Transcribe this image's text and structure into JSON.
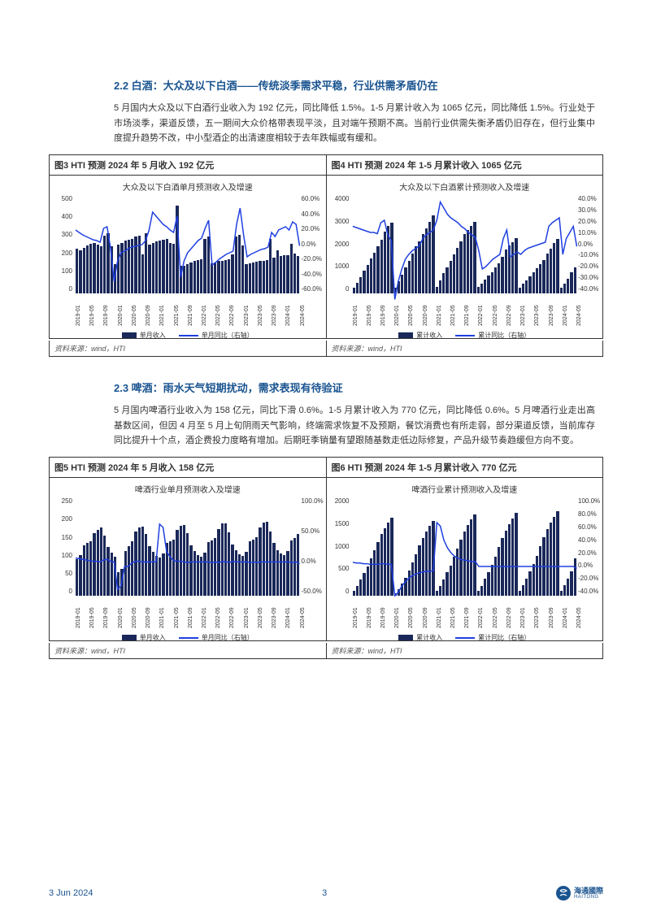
{
  "section_2_2": {
    "heading": "2.2  白酒：大众及以下白酒——传统淡季需求平稳，行业供需矛盾仍在",
    "body": "5 月国内大众及以下白酒行业收入为 192 亿元，同比降低 1.5%。1-5 月累计收入为 1065 亿元，同比降低 1.5%。行业处于市场淡季，渠道反馈，五一期间大众价格带表现平淡，且对端午预期不高。当前行业供需失衡矛盾仍旧存在，但行业集中度提升趋势不改，中小型酒企的出清速度相较于去年跌幅或有缓和。"
  },
  "fig3": {
    "caption": "图3   HTI 预测 2024 年 5 月收入 192 亿元",
    "title": "大众及以下白酒单月预测收入及增速",
    "type": "bar+line",
    "bar_color": "#1a2859",
    "line_color": "#2040e0",
    "background_color": "#ffffff",
    "y_left": {
      "min": 0,
      "max": 500,
      "step": 100,
      "label": ""
    },
    "y_right": {
      "min": -60,
      "max": 60,
      "step": 20,
      "suffix": "%"
    },
    "x_labels": [
      "2019-01",
      "2019-05",
      "2019-09",
      "2020-01",
      "2020-05",
      "2020-09",
      "2021-01",
      "2021-05",
      "2021-09",
      "2022-01",
      "2022-05",
      "2022-09",
      "2023-01",
      "2023-05",
      "2023-09",
      "2024-01",
      "2024-05"
    ],
    "bars": [
      230,
      220,
      235,
      245,
      255,
      260,
      250,
      240,
      295,
      310,
      240,
      150,
      250,
      260,
      270,
      275,
      280,
      290,
      295,
      200,
      310,
      250,
      260,
      265,
      270,
      275,
      280,
      260,
      255,
      450,
      140,
      140,
      150,
      160,
      165,
      170,
      175,
      280,
      290,
      155,
      160,
      165,
      168,
      172,
      175,
      200,
      290,
      300,
      245,
      150,
      155,
      160,
      162,
      165,
      168,
      170,
      280,
      185,
      220,
      190,
      195,
      198,
      255,
      205,
      192
    ],
    "line": [
      18,
      15,
      12,
      10,
      8,
      6,
      5,
      3,
      20,
      22,
      -5,
      -45,
      -20,
      -10,
      -8,
      -5,
      -3,
      -2,
      -1,
      0,
      5,
      18,
      40,
      35,
      30,
      25,
      22,
      18,
      15,
      35,
      -40,
      -20,
      -10,
      -5,
      0,
      5,
      8,
      20,
      30,
      -25,
      -22,
      -18,
      -15,
      -12,
      -10,
      -8,
      25,
      45,
      12,
      -15,
      -12,
      -10,
      -8,
      -6,
      -5,
      -3,
      15,
      10,
      18,
      20,
      22,
      18,
      28,
      25,
      -1.5
    ],
    "legend_bar": "单月收入",
    "legend_line": "单月同比（右轴）",
    "source": "资料来源：wind，HTI"
  },
  "fig4": {
    "caption": "图4   HTI 预测 2024 年 1-5 月累计收入 1065 亿元",
    "title": "大众及以下白酒累计预测收入及增速",
    "type": "bar+line",
    "bar_color": "#1a2859",
    "line_color": "#2040e0",
    "y_left": {
      "min": 0,
      "max": 4000,
      "step": 1000
    },
    "y_right": {
      "min": -40,
      "max": 40,
      "step": 10,
      "suffix": "%"
    },
    "x_labels": [
      "2019-01",
      "2019-05",
      "2019-09",
      "2020-01",
      "2020-05",
      "2020-09",
      "2021-01",
      "2021-05",
      "2021-09",
      "2022-01",
      "2022-05",
      "2022-09",
      "2023-01",
      "2023-05",
      "2023-09",
      "2024-01",
      "2024-05"
    ],
    "bars": [
      230,
      450,
      680,
      920,
      1170,
      1430,
      1680,
      1920,
      2210,
      2520,
      2760,
      2910,
      250,
      510,
      780,
      1055,
      1335,
      1625,
      1920,
      2120,
      2430,
      2680,
      2940,
      3205,
      270,
      545,
      825,
      1085,
      1340,
      1610,
      1870,
      2150,
      2440,
      2595,
      2755,
      2920,
      260,
      410,
      560,
      720,
      885,
      1055,
      1230,
      1510,
      1800,
      1955,
      2115,
      2280,
      240,
      390,
      545,
      705,
      867,
      1032,
      1200,
      1370,
      1650,
      1835,
      2055,
      2245,
      220,
      415,
      610,
      865,
      1065
    ],
    "line": [
      15,
      14,
      13,
      12,
      11,
      10,
      10,
      9,
      18,
      20,
      8,
      3,
      -45,
      -30,
      -20,
      -12,
      -8,
      -5,
      -3,
      -1,
      5,
      8,
      10,
      12,
      20,
      35,
      30,
      25,
      22,
      20,
      18,
      15,
      13,
      10,
      8,
      6,
      -5,
      -20,
      -18,
      -15,
      -12,
      -10,
      -8,
      5,
      12,
      -10,
      -8,
      -6,
      -8,
      -5,
      -3,
      -2,
      -1,
      0,
      1,
      2,
      15,
      18,
      20,
      22,
      -8,
      5,
      10,
      15,
      -1.5
    ],
    "legend_bar": "累计收入",
    "legend_line": "累计同比（右轴）",
    "source": "资料来源：wind，HTI"
  },
  "section_2_3": {
    "heading": "2.3  啤酒：雨水天气短期扰动，需求表现有待验证",
    "body": "5 月国内啤酒行业收入为 158 亿元，同比下滑 0.6%。1-5 月累计收入为 770 亿元，同比降低 0.6%。5 月啤酒行业走出高基数区间，但因 4 月至 5 月上旬阴雨天气影响，终端需求恢复不及预期，餐饮消费也有所走弱，部分渠道反馈，当前库存同比提升十个点，酒企费投力度略有增加。后期旺季销量有望跟随基数走低边际修复，产品升级节奏趋缓但方向不变。"
  },
  "fig5": {
    "caption": "图5   HTI 预测 2024 年 5 月收入 158 亿元",
    "title": "啤酒行业单月预测收入及增速",
    "type": "bar+line",
    "bar_color": "#1a2859",
    "line_color": "#2040e0",
    "y_left": {
      "min": 0,
      "max": 250,
      "step": 50
    },
    "y_right": {
      "min": -50,
      "max": 100,
      "step": 50,
      "suffix": "%"
    },
    "x_labels": [
      "2019-01",
      "2019-05",
      "2019-09",
      "2020-01",
      "2020-05",
      "2020-09",
      "2021-01",
      "2021-05",
      "2021-09",
      "2022-01",
      "2022-05",
      "2022-09",
      "2023-01",
      "2023-05",
      "2023-09",
      "2024-01",
      "2024-05"
    ],
    "bars": [
      95,
      105,
      130,
      135,
      140,
      160,
      170,
      175,
      155,
      125,
      110,
      100,
      60,
      70,
      115,
      128,
      140,
      165,
      175,
      178,
      158,
      128,
      112,
      102,
      98,
      108,
      135,
      140,
      145,
      170,
      180,
      182,
      160,
      130,
      114,
      104,
      100,
      110,
      138,
      142,
      148,
      172,
      185,
      186,
      162,
      132,
      116,
      106,
      102,
      112,
      140,
      145,
      150,
      175,
      188,
      190,
      165,
      135,
      118,
      108,
      104,
      114,
      142,
      148,
      158
    ],
    "line": [
      8,
      7,
      6,
      5,
      4,
      3,
      3,
      2,
      5,
      6,
      3,
      2,
      -40,
      -35,
      -5,
      -5,
      0,
      3,
      3,
      2,
      2,
      2,
      2,
      2,
      60,
      55,
      18,
      10,
      4,
      3,
      3,
      2,
      1,
      2,
      2,
      2,
      2,
      2,
      2,
      1,
      2,
      1,
      3,
      2,
      1,
      3,
      2,
      2,
      2,
      2,
      1,
      2,
      1,
      2,
      2,
      2,
      2,
      2,
      2,
      2,
      2,
      2,
      1,
      2,
      -0.6
    ],
    "legend_bar": "单月收入",
    "legend_line": "单月同比（右轴）",
    "source": "资料来源：wind，HTI"
  },
  "fig6": {
    "caption": "图6   HTI 预测 2024 年 1-5 月累计收入 770 亿元",
    "title": "啤酒行业累计预测收入及增速",
    "type": "bar+line",
    "bar_color": "#1a2859",
    "line_color": "#2040e0",
    "y_left": {
      "min": 0,
      "max": 2000,
      "step": 500
    },
    "y_right": {
      "min": -40,
      "max": 100,
      "step": 20,
      "suffix": "%"
    },
    "x_labels": [
      "2019-01",
      "2019-05",
      "2019-09",
      "2020-01",
      "2020-05",
      "2020-09",
      "2021-01",
      "2021-05",
      "2021-09",
      "2022-01",
      "2022-05",
      "2022-09",
      "2023-01",
      "2023-05",
      "2023-09",
      "2024-01",
      "2024-05"
    ],
    "bars": [
      95,
      200,
      330,
      465,
      605,
      765,
      935,
      1110,
      1265,
      1390,
      1500,
      1600,
      60,
      130,
      245,
      373,
      513,
      678,
      853,
      1031,
      1189,
      1317,
      1429,
      1531,
      98,
      206,
      341,
      481,
      626,
      796,
      976,
      1158,
      1318,
      1448,
      1562,
      1666,
      100,
      210,
      348,
      490,
      638,
      810,
      995,
      1181,
      1343,
      1475,
      1591,
      1697,
      102,
      214,
      354,
      499,
      649,
      824,
      1012,
      1202,
      1367,
      1502,
      1620,
      1728,
      104,
      218,
      360,
      508,
      770
    ],
    "line": [
      8,
      7,
      7,
      6,
      6,
      5,
      5,
      5,
      6,
      6,
      5,
      5,
      -40,
      -35,
      -26,
      -20,
      -15,
      -11,
      -9,
      -7,
      -6,
      -5,
      -5,
      -4,
      65,
      60,
      40,
      29,
      22,
      17,
      14,
      12,
      11,
      10,
      9,
      9,
      2,
      2,
      2,
      2,
      2,
      2,
      2,
      2,
      2,
      2,
      2,
      2,
      2,
      2,
      2,
      2,
      2,
      2,
      2,
      2,
      2,
      2,
      2,
      2,
      2,
      2,
      2,
      2,
      -0.6
    ],
    "legend_bar": "累计收入",
    "legend_line": "累计同比（右轴）",
    "source": "资料来源：wind，HTI"
  },
  "footer": {
    "date": "3 Jun 2024",
    "page": "3",
    "brand_cn": "海通國際",
    "brand_en": "HAITONG"
  }
}
